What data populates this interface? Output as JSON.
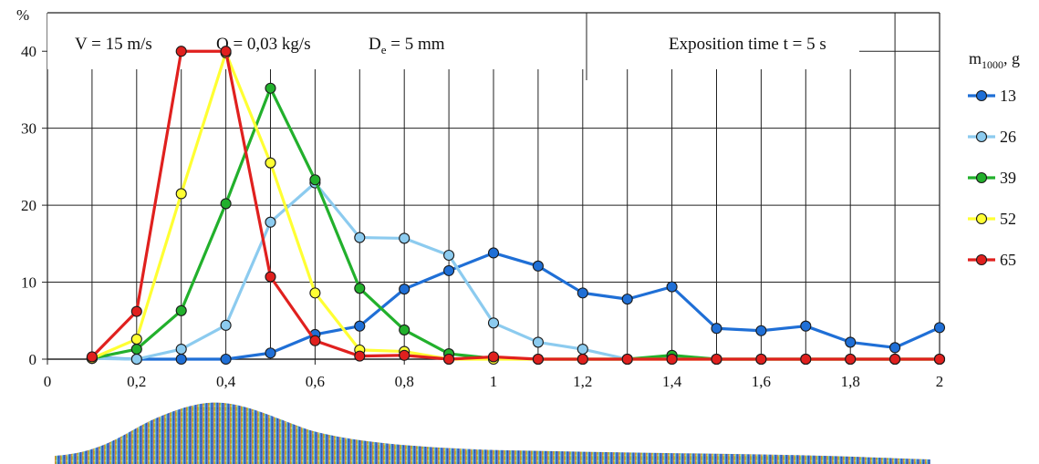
{
  "chart_data": {
    "type": "line",
    "title": "",
    "xlabel": "",
    "ylabel": "%",
    "xlim": [
      0,
      2
    ],
    "ylim": [
      0,
      45
    ],
    "x_ticks": [
      "0",
      "0,2",
      "0,4",
      "0,6",
      "0,8",
      "1",
      "1,2",
      "1,4",
      "1,6",
      "1,8",
      "2"
    ],
    "x_tick_values": [
      0,
      0.2,
      0.4,
      0.6,
      0.8,
      1.0,
      1.2,
      1.4,
      1.6,
      1.8,
      2.0
    ],
    "y_ticks": [
      "0",
      "10",
      "20",
      "30",
      "40"
    ],
    "y_tick_values": [
      0,
      10,
      20,
      30,
      40
    ],
    "grid": true,
    "annotations": {
      "velocity": "V = 15 m/s",
      "flow": "Q = 0,03 kg/s",
      "diameter_main": "D",
      "diameter_sub": "e",
      "diameter_value": " = 5 mm",
      "exposition": "Exposition time  t = 5 s"
    },
    "legend": {
      "title_main": "m",
      "title_sub": "1000",
      "title_unit": ", g",
      "placement": "right"
    },
    "x": [
      0.1,
      0.2,
      0.3,
      0.4,
      0.5,
      0.6,
      0.7,
      0.8,
      0.9,
      1.0,
      1.1,
      1.2,
      1.3,
      1.4,
      1.5,
      1.6,
      1.7,
      1.8,
      1.9,
      2.0
    ],
    "series": [
      {
        "name": "13",
        "color": "#1f6fd6",
        "values": [
          0.2,
          0,
          0,
          0,
          0.8,
          3.2,
          4.3,
          9.1,
          11.5,
          13.8,
          12.1,
          8.6,
          7.8,
          9.4,
          4.0,
          3.7,
          4.3,
          2.2,
          1.5,
          4.1
        ]
      },
      {
        "name": "26",
        "color": "#8ccbef",
        "values": [
          0.1,
          0,
          1.3,
          4.4,
          17.8,
          22.9,
          15.8,
          15.7,
          13.5,
          4.7,
          2.2,
          1.3,
          0,
          0.2,
          0,
          0,
          0,
          0,
          0,
          0
        ]
      },
      {
        "name": "39",
        "color": "#22b02c",
        "values": [
          0.1,
          1.3,
          6.3,
          20.2,
          35.2,
          23.3,
          9.2,
          3.8,
          0.7,
          0.1,
          0,
          0,
          0,
          0.5,
          0,
          0,
          0,
          0,
          0,
          0
        ]
      },
      {
        "name": "52",
        "color": "#ffff33",
        "values": [
          0.1,
          2.6,
          21.5,
          39.8,
          25.5,
          8.6,
          1.2,
          1.0,
          0,
          0,
          0,
          0,
          0,
          0,
          0,
          0,
          0,
          0,
          0,
          0
        ]
      },
      {
        "name": "65",
        "color": "#e0201e",
        "values": [
          0.3,
          6.2,
          40.0,
          40.0,
          10.7,
          2.4,
          0.4,
          0.5,
          0,
          0.3,
          0,
          0,
          0,
          0,
          0,
          0,
          0,
          0,
          0,
          0
        ]
      }
    ]
  }
}
